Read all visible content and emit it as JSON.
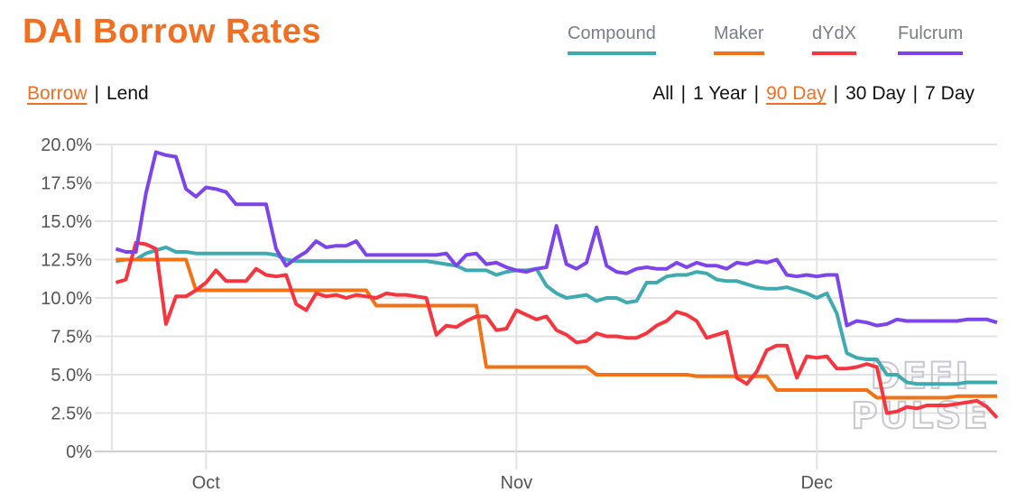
{
  "header": {
    "title": "DAI Borrow Rates"
  },
  "legend": [
    {
      "label": "Compound",
      "color": "#40aab1"
    },
    {
      "label": "Maker",
      "color": "#f47216"
    },
    {
      "label": "dYdX",
      "color": "#f7353f"
    },
    {
      "label": "Fulcrum",
      "color": "#7e44eb"
    }
  ],
  "modes": {
    "borrow": "Borrow",
    "separator": "|",
    "lend": "Lend",
    "active": "Borrow"
  },
  "ranges": {
    "items": [
      "All",
      "1 Year",
      "90 Day",
      "30 Day",
      "7 Day"
    ],
    "active": "90 Day",
    "separator": "|"
  },
  "watermark": "DEFI PULSE",
  "chart_data": {
    "type": "line",
    "title": "DAI Borrow Rates",
    "x_unit": "days since Oct 1",
    "x_start": -9,
    "xlim": [
      -9.4,
      79
    ],
    "ylim": [
      0,
      20
    ],
    "yticks": [
      0,
      2.5,
      5,
      7.5,
      10,
      12.5,
      15,
      17.5,
      20
    ],
    "ytick_labels": [
      "0%",
      "2.5%",
      "5.0%",
      "7.5%",
      "10.0%",
      "12.5%",
      "15.0%",
      "17.5%",
      "20.0%"
    ],
    "xticks": [
      {
        "day": 0,
        "label": "Oct"
      },
      {
        "day": 31,
        "label": "Nov"
      },
      {
        "day": 61,
        "label": "Dec"
      }
    ],
    "grid": true,
    "legend_position": "top-right",
    "series": [
      {
        "name": "Compound",
        "color": "#40aab1",
        "values": [
          12.4,
          12.5,
          12.5,
          12.9,
          13.1,
          13.3,
          13.0,
          13.0,
          12.9,
          12.9,
          12.9,
          12.9,
          12.9,
          12.9,
          12.9,
          12.9,
          12.8,
          12.5,
          12.4,
          12.4,
          12.4,
          12.4,
          12.4,
          12.4,
          12.4,
          12.4,
          12.4,
          12.4,
          12.4,
          12.4,
          12.4,
          12.4,
          12.3,
          12.2,
          12.1,
          11.8,
          11.8,
          11.8,
          11.5,
          11.7,
          11.8,
          11.8,
          11.9,
          10.8,
          10.3,
          10.0,
          10.1,
          10.2,
          9.8,
          10.0,
          10.0,
          9.7,
          9.8,
          11.0,
          11.0,
          11.4,
          11.5,
          11.5,
          11.7,
          11.6,
          11.2,
          11.1,
          11.1,
          10.9,
          10.7,
          10.6,
          10.6,
          10.7,
          10.5,
          10.3,
          10.0,
          10.3,
          9.0,
          6.4,
          6.1,
          6.0,
          6.0,
          5.0,
          5.0,
          4.5,
          4.4,
          4.4,
          4.4,
          4.4,
          4.4,
          4.5,
          4.5,
          4.5,
          4.5
        ]
      },
      {
        "name": "Maker",
        "color": "#f47216",
        "values": [
          12.5,
          12.5,
          12.5,
          12.5,
          12.5,
          12.5,
          12.5,
          12.5,
          10.5,
          10.5,
          10.5,
          10.5,
          10.5,
          10.5,
          10.5,
          10.5,
          10.5,
          10.5,
          10.5,
          10.5,
          10.5,
          10.5,
          10.5,
          10.5,
          10.5,
          10.5,
          9.5,
          9.5,
          9.5,
          9.5,
          9.5,
          9.5,
          9.5,
          9.5,
          9.5,
          9.5,
          9.5,
          5.5,
          5.5,
          5.5,
          5.5,
          5.5,
          5.5,
          5.5,
          5.5,
          5.5,
          5.5,
          5.5,
          5.0,
          5.0,
          5.0,
          5.0,
          5.0,
          5.0,
          5.0,
          5.0,
          5.0,
          5.0,
          4.9,
          4.9,
          4.9,
          4.9,
          4.9,
          4.9,
          4.9,
          4.9,
          4.0,
          4.0,
          4.0,
          4.0,
          4.0,
          4.0,
          4.0,
          4.0,
          4.0,
          4.0,
          3.5,
          3.5,
          3.5,
          3.5,
          3.5,
          3.5,
          3.5,
          3.5,
          3.6,
          3.6,
          3.6,
          3.6,
          3.6
        ]
      },
      {
        "name": "dYdX",
        "color": "#f7353f",
        "values": [
          11.0,
          11.2,
          13.6,
          13.5,
          13.2,
          8.3,
          10.1,
          10.1,
          10.5,
          11.0,
          11.8,
          11.1,
          11.1,
          11.1,
          11.9,
          11.5,
          11.4,
          11.5,
          9.6,
          9.2,
          10.3,
          10.1,
          10.2,
          10.0,
          10.2,
          10.1,
          10.0,
          10.3,
          10.2,
          10.2,
          10.1,
          10.0,
          7.6,
          8.2,
          8.1,
          8.5,
          8.8,
          8.8,
          7.9,
          8.0,
          9.2,
          8.9,
          8.6,
          8.8,
          7.9,
          7.6,
          7.1,
          7.2,
          7.7,
          7.5,
          7.5,
          7.4,
          7.4,
          7.7,
          8.2,
          8.5,
          9.1,
          8.9,
          8.5,
          7.4,
          7.6,
          7.8,
          4.8,
          4.4,
          5.2,
          6.6,
          6.9,
          6.9,
          4.8,
          6.2,
          6.1,
          6.2,
          5.4,
          5.4,
          5.5,
          5.7,
          5.5,
          2.5,
          2.6,
          2.9,
          2.8,
          3.0,
          3.0,
          3.0,
          3.1,
          3.2,
          3.3,
          2.9,
          2.2
        ]
      },
      {
        "name": "Fulcrum",
        "color": "#7e44eb",
        "values": [
          13.2,
          13.0,
          13.0,
          16.8,
          19.5,
          19.3,
          19.2,
          17.1,
          16.6,
          17.2,
          17.1,
          16.9,
          16.1,
          16.1,
          16.1,
          16.1,
          13.2,
          12.1,
          12.6,
          13.0,
          13.7,
          13.3,
          13.4,
          13.4,
          13.7,
          12.8,
          12.8,
          12.8,
          12.8,
          12.8,
          12.8,
          12.8,
          12.8,
          12.9,
          12.1,
          12.8,
          12.9,
          12.2,
          12.3,
          12.0,
          11.8,
          11.7,
          11.9,
          12.0,
          14.7,
          12.2,
          11.9,
          12.3,
          14.6,
          12.1,
          11.7,
          11.6,
          11.9,
          12.0,
          11.9,
          11.9,
          12.3,
          12.0,
          12.3,
          12.1,
          12.1,
          11.9,
          12.3,
          12.2,
          12.4,
          12.3,
          12.5,
          11.5,
          11.4,
          11.5,
          11.4,
          11.5,
          11.5,
          8.2,
          8.5,
          8.4,
          8.2,
          8.3,
          8.6,
          8.5,
          8.5,
          8.5,
          8.5,
          8.5,
          8.5,
          8.6,
          8.6,
          8.6,
          8.4
        ]
      }
    ]
  }
}
